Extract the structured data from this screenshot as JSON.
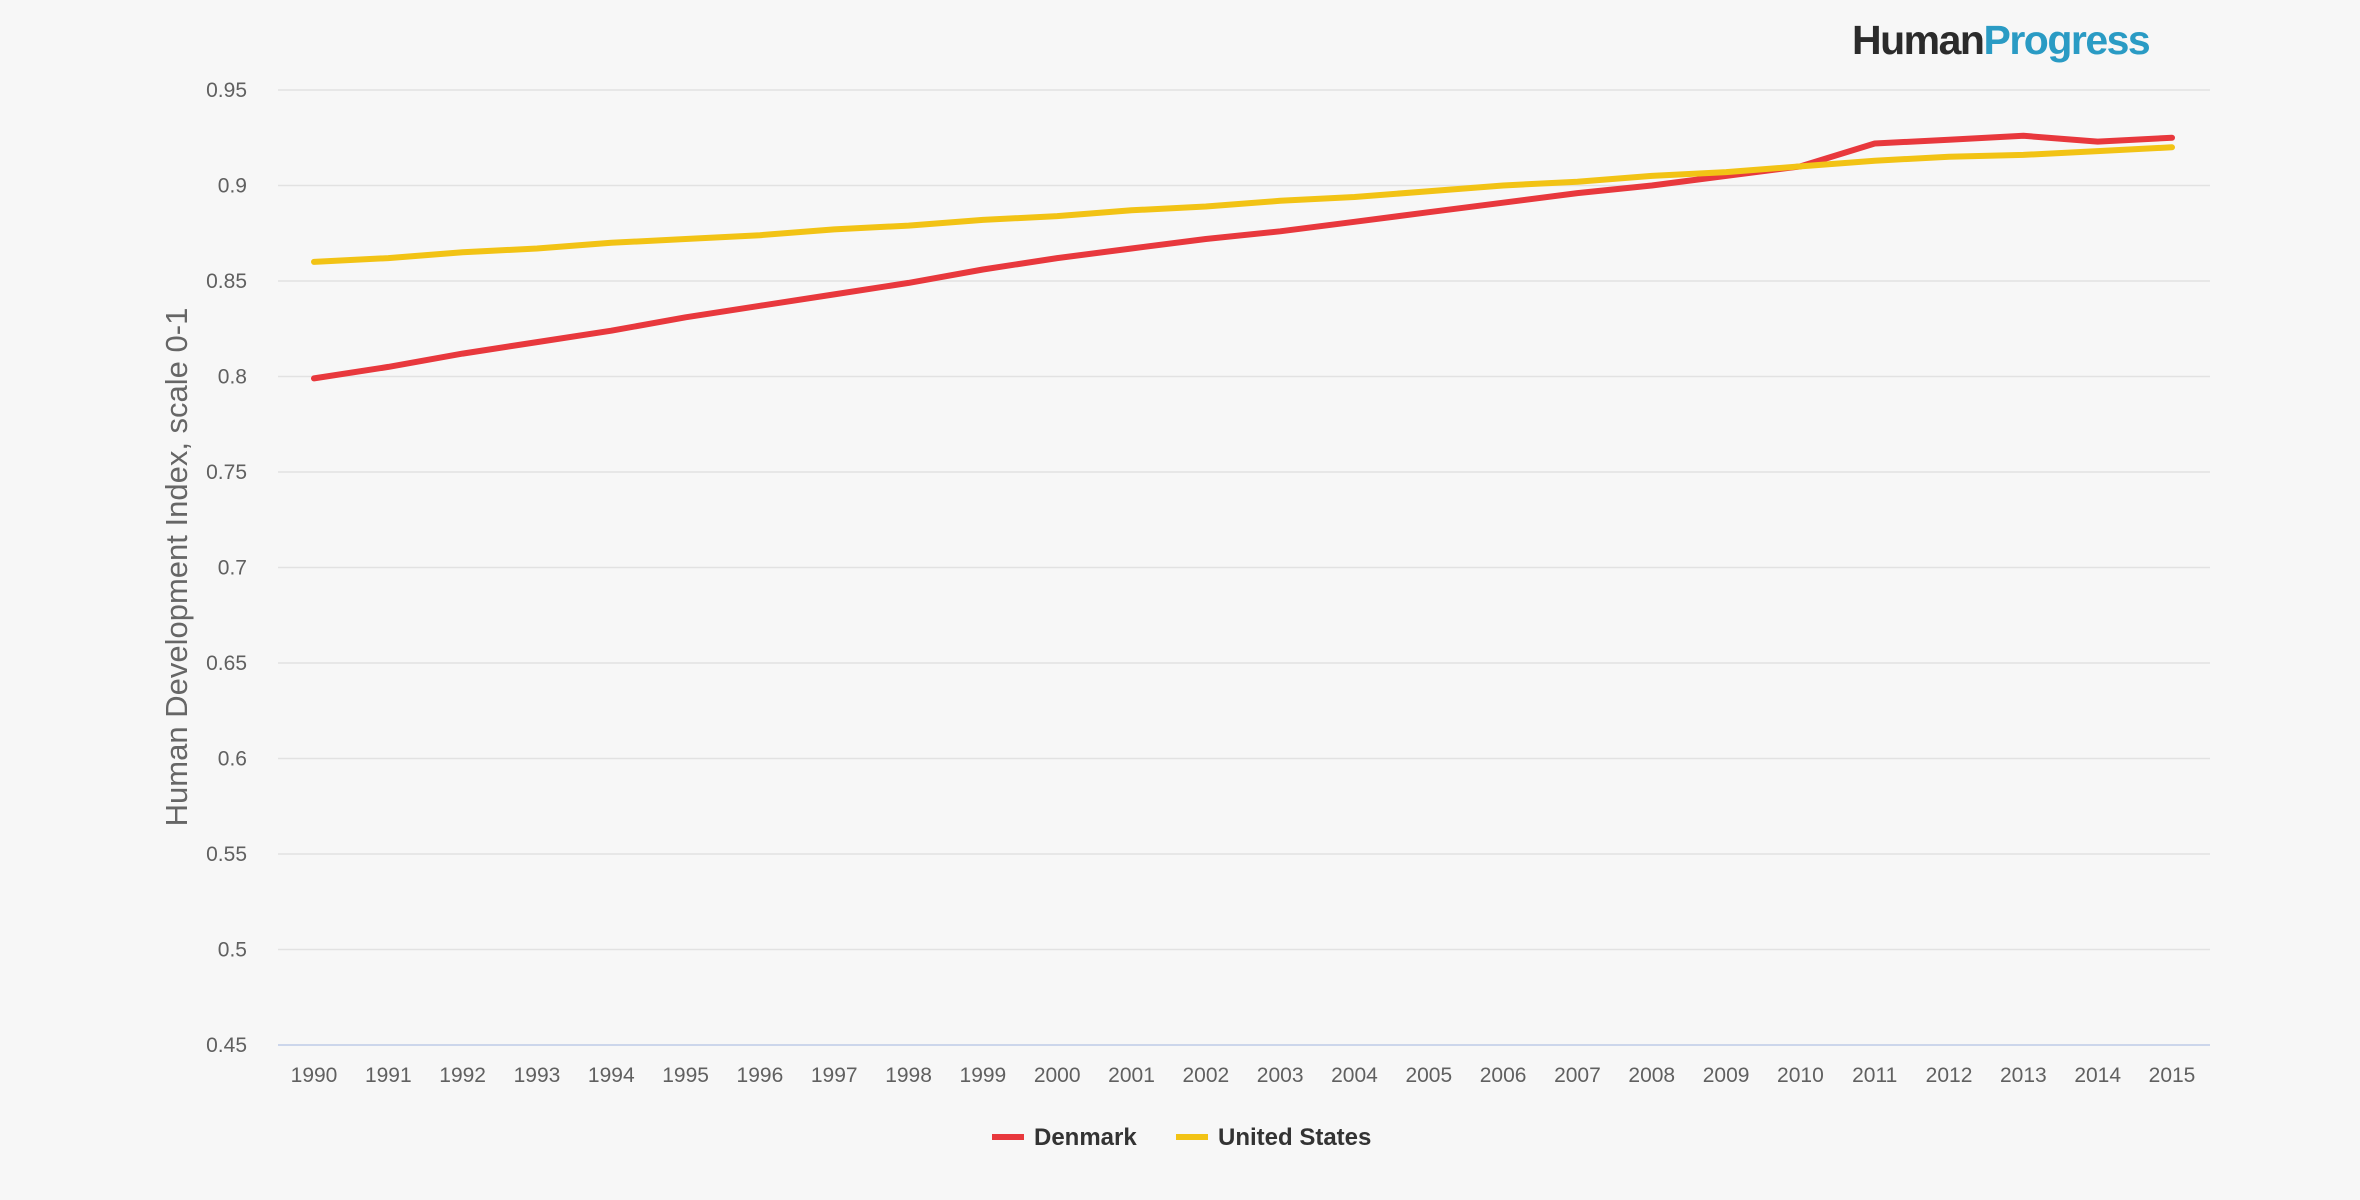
{
  "logo": {
    "part1": "Human",
    "part2": "Progress",
    "color1": "#2b2b2b",
    "color2": "#2a9bc4"
  },
  "chart_data": {
    "type": "line",
    "title": "",
    "xlabel": "",
    "ylabel": "Human Development Index, scale 0-1",
    "x": [
      "1990",
      "1991",
      "1992",
      "1993",
      "1994",
      "1995",
      "1996",
      "1997",
      "1998",
      "1999",
      "2000",
      "2001",
      "2002",
      "2003",
      "2004",
      "2005",
      "2006",
      "2007",
      "2008",
      "2009",
      "2010",
      "2011",
      "2012",
      "2013",
      "2014",
      "2015"
    ],
    "ylim": [
      0.45,
      0.95
    ],
    "yticks": [
      "0.45",
      "0.5",
      "0.55",
      "0.6",
      "0.65",
      "0.7",
      "0.75",
      "0.8",
      "0.85",
      "0.9",
      "0.95"
    ],
    "grid": true,
    "legend_position": "bottom-center",
    "series": [
      {
        "name": "Denmark",
        "color": "#e8383d",
        "values": [
          0.799,
          0.805,
          0.812,
          0.818,
          0.824,
          0.831,
          0.837,
          0.843,
          0.849,
          0.856,
          0.862,
          0.867,
          0.872,
          0.876,
          0.881,
          0.886,
          0.891,
          0.896,
          0.9,
          0.905,
          0.91,
          0.922,
          0.924,
          0.926,
          0.923,
          0.925
        ]
      },
      {
        "name": "United States",
        "color": "#f2c315",
        "values": [
          0.86,
          0.862,
          0.865,
          0.867,
          0.87,
          0.872,
          0.874,
          0.877,
          0.879,
          0.882,
          0.884,
          0.887,
          0.889,
          0.892,
          0.894,
          0.897,
          0.9,
          0.902,
          0.905,
          0.907,
          0.91,
          0.913,
          0.915,
          0.916,
          0.918,
          0.92
        ]
      }
    ]
  }
}
